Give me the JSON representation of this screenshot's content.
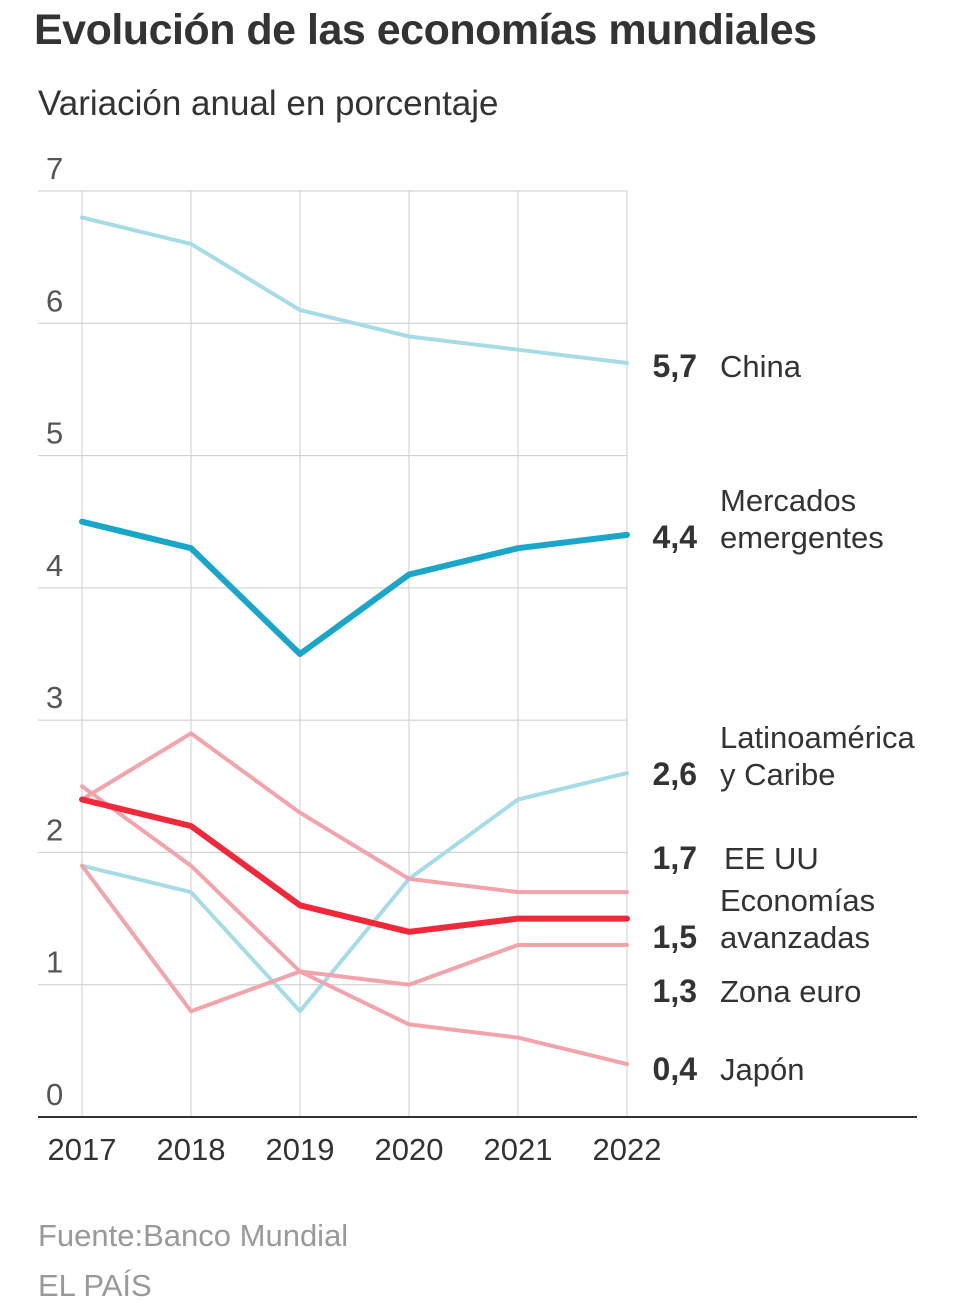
{
  "title": "Evolución de las economías mundiales",
  "subtitle": "Variación anual en porcentaje",
  "source": "Fuente:Banco Mundial",
  "brand": "EL PAÍS",
  "chart_data": {
    "type": "line",
    "title": "Evolución de las economías mundiales",
    "subtitle": "Variación anual en porcentaje",
    "xlabel": "",
    "ylabel": "",
    "x": [
      "2017",
      "2018",
      "2019",
      "2020",
      "2021",
      "2022"
    ],
    "ylim": [
      0,
      7
    ],
    "yticks": [
      "0",
      "1",
      "2",
      "3",
      "4",
      "5",
      "6",
      "7"
    ],
    "grid": true,
    "series": [
      {
        "key": "china",
        "name": "China",
        "name_lines": [
          "China"
        ],
        "end_label": "5,7",
        "values": [
          6.8,
          6.6,
          6.1,
          5.9,
          5.8,
          5.7
        ],
        "color": "#a6dce6",
        "emphasis": "normal"
      },
      {
        "key": "emergentes",
        "name": "Mercados emergentes",
        "name_lines": [
          "Mercados",
          "emergentes"
        ],
        "end_label": "4,4",
        "values": [
          4.5,
          4.3,
          3.5,
          4.1,
          4.3,
          4.4
        ],
        "color": "#1aa6c8",
        "emphasis": "bold"
      },
      {
        "key": "latam",
        "name": "Latinoamérica y Caribe",
        "name_lines": [
          "Latinoamérica",
          "y Caribe"
        ],
        "end_label": "2,6",
        "values": [
          1.9,
          1.7,
          0.8,
          1.8,
          2.4,
          2.6
        ],
        "color": "#a6dce6",
        "emphasis": "normal"
      },
      {
        "key": "eeuu",
        "name": "EE UU",
        "name_lines": [
          "EE UU"
        ],
        "end_label": "1,7",
        "values": [
          2.4,
          2.9,
          2.3,
          1.8,
          1.7,
          1.7
        ],
        "color": "#f3a3aa",
        "emphasis": "normal"
      },
      {
        "key": "avanzadas",
        "name": "Economías avanzadas",
        "name_lines": [
          "Economías",
          "avanzadas"
        ],
        "end_label": "1,5",
        "values": [
          2.4,
          2.2,
          1.6,
          1.4,
          1.5,
          1.5
        ],
        "color": "#f0283a",
        "emphasis": "bold"
      },
      {
        "key": "euro",
        "name": "Zona euro",
        "name_lines": [
          "Zona euro"
        ],
        "end_label": "1,3",
        "values": [
          2.5,
          1.9,
          1.1,
          1.0,
          1.3,
          1.3
        ],
        "color": "#f3a3aa",
        "emphasis": "normal"
      },
      {
        "key": "japon",
        "name": "Japón",
        "name_lines": [
          "Japón"
        ],
        "end_label": "0,4",
        "values": [
          1.9,
          0.8,
          1.1,
          0.7,
          0.6,
          0.4
        ],
        "color": "#f3a3aa",
        "emphasis": "normal"
      }
    ]
  }
}
